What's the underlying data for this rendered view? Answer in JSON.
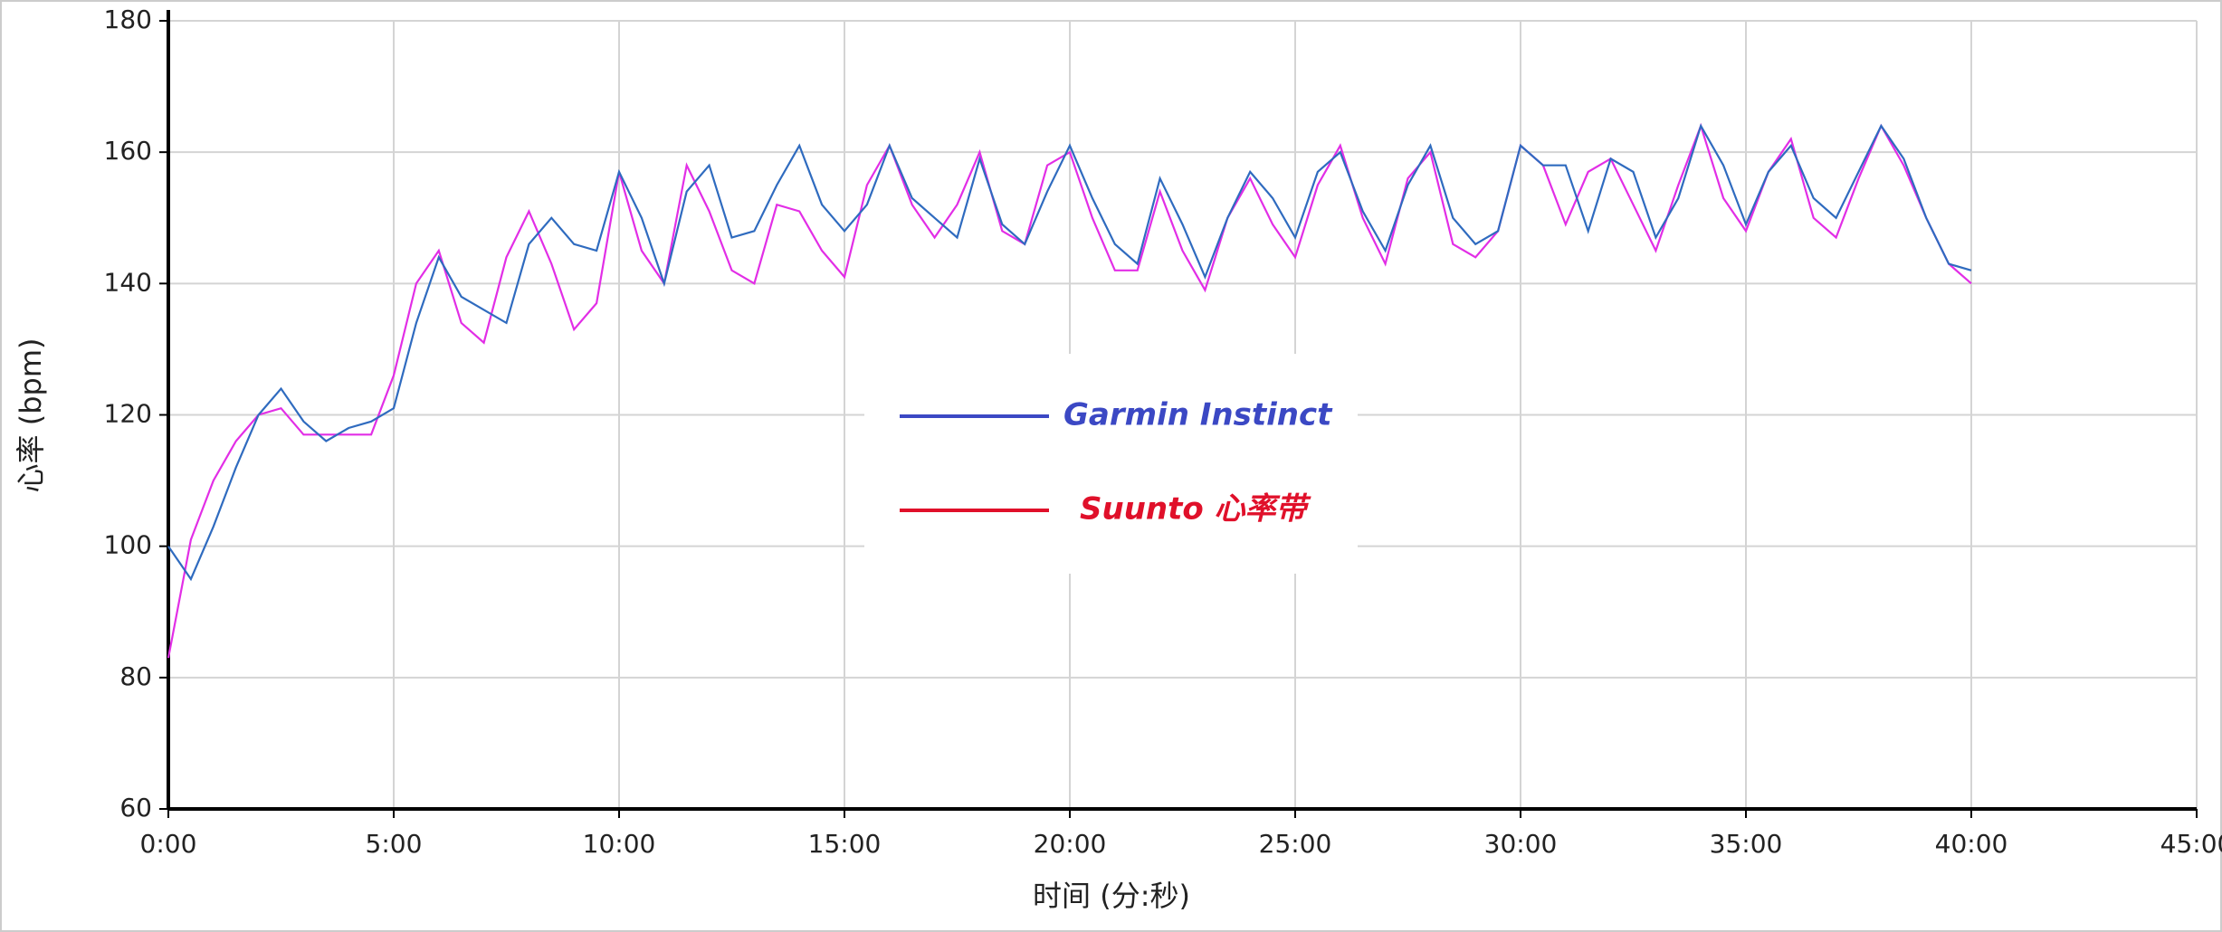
{
  "chart_data": {
    "type": "line",
    "x_label": "时间 (分:秒)",
    "y_label": "心率 (bpm)",
    "x": [
      0,
      0.5,
      1,
      1.5,
      2,
      2.5,
      3,
      3.5,
      4,
      4.5,
      5,
      5.5,
      6,
      6.5,
      7,
      7.5,
      8,
      8.5,
      9,
      9.5,
      10,
      10.5,
      11,
      11.5,
      12,
      12.5,
      13,
      13.5,
      14,
      14.5,
      15,
      15.5,
      16,
      16.5,
      17,
      17.5,
      18,
      18.5,
      19,
      19.5,
      20,
      20.5,
      21,
      21.5,
      22,
      22.5,
      23,
      23.5,
      24,
      24.5,
      25,
      25.5,
      26,
      26.5,
      27,
      27.5,
      28,
      28.5,
      29,
      29.5,
      30,
      30.5,
      31,
      31.5,
      32,
      32.5,
      33,
      33.5,
      34,
      34.5,
      35,
      35.5,
      36,
      36.5,
      37,
      37.5,
      38,
      38.5,
      39,
      39.5,
      40
    ],
    "series": [
      {
        "name": "Garmin Instinct",
        "color": "#2f6bbf",
        "legend_color": "#3b48c4",
        "values": [
          100,
          95,
          103,
          112,
          120,
          124,
          119,
          116,
          118,
          119,
          121,
          134,
          144,
          138,
          136,
          134,
          146,
          150,
          146,
          145,
          157,
          150,
          140,
          154,
          158,
          147,
          148,
          155,
          161,
          152,
          148,
          152,
          161,
          153,
          150,
          147,
          159,
          149,
          146,
          154,
          161,
          153,
          146,
          143,
          156,
          149,
          141,
          150,
          157,
          153,
          147,
          157,
          160,
          151,
          145,
          155,
          161,
          150,
          146,
          148,
          161,
          158,
          158,
          148,
          159,
          157,
          147,
          153,
          164,
          158,
          149,
          157,
          161,
          153,
          150,
          157,
          164,
          159,
          150,
          143,
          142
        ]
      },
      {
        "name": "Suunto 心率带",
        "color": "#e22ee6",
        "legend_color": "#e0102a",
        "values": [
          83,
          101,
          110,
          116,
          120,
          121,
          117,
          117,
          117,
          117,
          126,
          140,
          145,
          134,
          131,
          144,
          151,
          143,
          133,
          137,
          157,
          145,
          140,
          158,
          151,
          142,
          140,
          152,
          151,
          145,
          141,
          155,
          161,
          152,
          147,
          152,
          160,
          148,
          146,
          158,
          160,
          150,
          142,
          142,
          154,
          145,
          139,
          150,
          156,
          149,
          144,
          155,
          161,
          150,
          143,
          156,
          160,
          146,
          144,
          148,
          161,
          158,
          149,
          157,
          159,
          152,
          145,
          155,
          164,
          153,
          148,
          157,
          162,
          150,
          147,
          156,
          164,
          158,
          150,
          143,
          140
        ]
      }
    ],
    "xlim": [
      0,
      45
    ],
    "xticks": [
      {
        "value": 0,
        "label": "0:00"
      },
      {
        "value": 5,
        "label": "5:00"
      },
      {
        "value": 10,
        "label": "10:00"
      },
      {
        "value": 15,
        "label": "15:00"
      },
      {
        "value": 20,
        "label": "20:00"
      },
      {
        "value": 25,
        "label": "25:00"
      },
      {
        "value": 30,
        "label": "30:00"
      },
      {
        "value": 35,
        "label": "35:00"
      },
      {
        "value": 40,
        "label": "40:00"
      },
      {
        "value": 45,
        "label": "45:00"
      }
    ],
    "ylim": [
      60,
      180
    ],
    "yticks": [
      60,
      80,
      100,
      120,
      140,
      160,
      180
    ],
    "grid": true
  }
}
